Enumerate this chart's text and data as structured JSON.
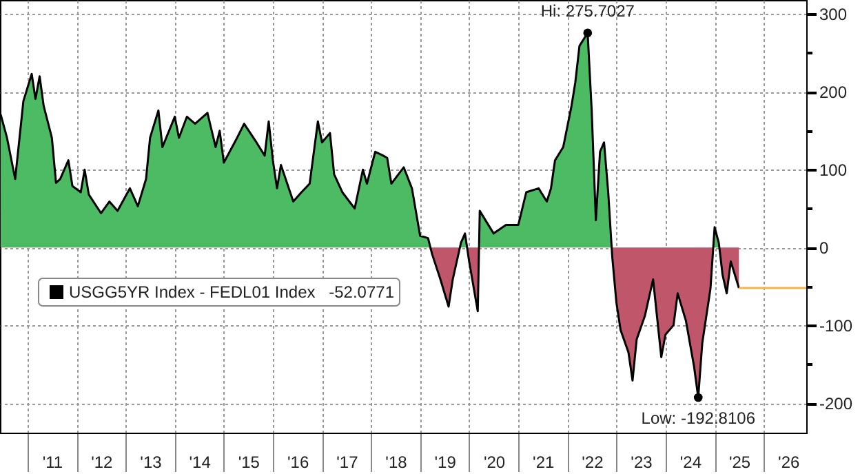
{
  "chart_data": {
    "type": "area",
    "xlim": [
      "2010-06-10",
      "2026-11-14"
    ],
    "xticks": [
      {
        "value": "2011-01-01",
        "label": null
      },
      {
        "value": "2011-07-02",
        "label": "'11"
      },
      {
        "value": "2012-01-01",
        "label": null
      },
      {
        "value": "2012-07-02",
        "label": "'12"
      },
      {
        "value": "2013-01-01",
        "label": null
      },
      {
        "value": "2013-07-02",
        "label": "'13"
      },
      {
        "value": "2014-01-01",
        "label": null
      },
      {
        "value": "2014-07-02",
        "label": "'14"
      },
      {
        "value": "2015-01-01",
        "label": null
      },
      {
        "value": "2015-07-02",
        "label": "'15"
      },
      {
        "value": "2016-01-01",
        "label": null
      },
      {
        "value": "2016-07-02",
        "label": "'16"
      },
      {
        "value": "2017-01-01",
        "label": null
      },
      {
        "value": "2017-07-02",
        "label": "'17"
      },
      {
        "value": "2018-01-01",
        "label": null
      },
      {
        "value": "2018-07-02",
        "label": "'18"
      },
      {
        "value": "2019-01-01",
        "label": null
      },
      {
        "value": "2019-07-02",
        "label": "'19"
      },
      {
        "value": "2020-01-01",
        "label": null
      },
      {
        "value": "2020-07-02",
        "label": "'20"
      },
      {
        "value": "2021-01-01",
        "label": null
      },
      {
        "value": "2021-07-02",
        "label": "'21"
      },
      {
        "value": "2022-01-01",
        "label": null
      },
      {
        "value": "2022-07-02",
        "label": "'22"
      },
      {
        "value": "2023-01-01",
        "label": null
      },
      {
        "value": "2023-07-02",
        "label": "'23"
      },
      {
        "value": "2024-01-01",
        "label": null
      },
      {
        "value": "2024-07-02",
        "label": "'24"
      },
      {
        "value": "2025-01-01",
        "label": null
      },
      {
        "value": "2025-07-02",
        "label": "'25"
      },
      {
        "value": "2026-01-01",
        "label": null
      },
      {
        "value": "2026-07-02",
        "label": "'26"
      }
    ],
    "ylim": [
      -238,
      318
    ],
    "yticks": [
      {
        "value": -200,
        "label": "-200"
      },
      {
        "value": -150,
        "label": null
      },
      {
        "value": -100,
        "label": "-100"
      },
      {
        "value": -50,
        "label": null
      },
      {
        "value": 0,
        "label": "0"
      },
      {
        "value": 50,
        "label": null
      },
      {
        "value": 100,
        "label": "100"
      },
      {
        "value": 150,
        "label": null
      },
      {
        "value": 200,
        "label": "200"
      },
      {
        "value": 250,
        "label": null
      },
      {
        "value": 300,
        "label": "300"
      }
    ],
    "grid": true,
    "legend": "left",
    "series": [
      {
        "name": "USGG5YR Index - FEDL01 Index",
        "color": "#000000",
        "colors": [
          "#4cbb63",
          "#4cbb63",
          "#4cbb63",
          "#4cbb63",
          "#4cbb63",
          "#4cbb63",
          "#4cbb63",
          "#4cbb63",
          "#4cbb63",
          "#4cbb63",
          "#4cbb63",
          "#4cbb63",
          "#4cbb63",
          "#4cbb63",
          "#4cbb63",
          "#4cbb63",
          "#4cbb63",
          "#4cbb63",
          "#4cbb63",
          "#4cbb63",
          "#4cbb63",
          "#4cbb63",
          "#4cbb63",
          "#4cbb63",
          "#4cbb63",
          "#4cbb63",
          "#4cbb63",
          "#4cbb63",
          "#4cbb63",
          "#4cbb63",
          "#4cbb63",
          "#4cbb63",
          "#4cbb63",
          "#4cbb63",
          "#4cbb63",
          "#4cbb63",
          "#4cbb63",
          "#4cbb63",
          "#4cbb63",
          "#4cbb63",
          "#4cbb63",
          "#4cbb63",
          "#4cbb63",
          "#4cbb63",
          "#4cbb63",
          "#4cbb63",
          "#4cbb63",
          "#4cbb63",
          "#4cbb63",
          "#4cbb63",
          "#4cbb63",
          "#4cbb63",
          "#4cbb63",
          "#4cbb63",
          "#4cbb63",
          "#4cbb63",
          "#4cbb63",
          "#4cbb63",
          "#4cbb63",
          "#4cbb63",
          "#c0566a",
          "#c0566a",
          "#c0566a",
          "#c0566a",
          "#4cbb63",
          "#4cbb63",
          "#c0566a",
          "#c0566a",
          "#4cbb63",
          "#4cbb63",
          "#4cbb63",
          "#4cbb63",
          "#4cbb63",
          "#4cbb63",
          "#4cbb63",
          "#4cbb63",
          "#4cbb63",
          "#4cbb63",
          "#4cbb63",
          "#4cbb63",
          "#4cbb63",
          "#4cbb63",
          "#4cbb63",
          "#4cbb63",
          "#4cbb63",
          "#4cbb63",
          "#4cbb63",
          "#c0566a",
          "#c0566a",
          "#c0566a",
          "#c0566a",
          "#c0566a",
          "#c0566a",
          "#c0566a",
          "#c0566a",
          "#c0566a",
          "#c0566a",
          "#c0566a",
          "#c0566a",
          "#c0566a",
          "#c0566a",
          "#c0566a",
          "#c0566a",
          "#c0566a",
          "#4cbb63",
          "#4cbb63",
          "#c0566a",
          "#c0566a",
          "#c0566a",
          "#c0566a"
        ],
        "x": [
          "2010-06-15",
          "2010-08",
          "2010-10",
          "2010-12",
          "2011-02",
          "2011-03",
          "2011-04",
          "2011-05",
          "2011-07",
          "2011-08",
          "2011-09",
          "2011-11",
          "2011-12",
          "2012-02",
          "2012-03",
          "2012-04",
          "2012-07",
          "2012-09",
          "2012-11",
          "2013-02",
          "2013-04",
          "2013-06",
          "2013-07",
          "2013-09",
          "2013-10",
          "2014-01",
          "2014-02",
          "2014-04",
          "2014-06",
          "2014-09",
          "2014-11",
          "2014-12",
          "2015-01",
          "2015-04",
          "2015-06",
          "2015-09",
          "2015-11",
          "2015-12",
          "2016-01",
          "2016-02",
          "2016-03",
          "2016-06",
          "2016-08",
          "2016-10",
          "2016-12",
          "2017-01",
          "2017-03",
          "2017-04",
          "2017-06",
          "2017-09",
          "2017-11",
          "2017-12",
          "2018-02",
          "2018-04",
          "2018-05",
          "2018-06",
          "2018-09",
          "2018-11",
          "2019-01",
          "2019-03",
          "2019-04",
          "2019-06",
          "2019-08",
          "2019-09",
          "2019-11",
          "2019-12",
          "2020-01",
          "2020-03-05",
          "2020-03-20",
          "2020-07",
          "2020-10",
          "2021-01",
          "2021-03",
          "2021-06",
          "2021-08",
          "2021-09",
          "2021-10",
          "2021-12",
          "2022-02",
          "2022-03",
          "2022-04",
          "2022-06",
          "2022-07",
          "2022-08",
          "2022-09",
          "2022-10",
          "2022-11",
          "2022-12",
          "2023-01",
          "2023-02",
          "2023-04",
          "2023-05",
          "2023-06",
          "2023-08",
          "2023-10",
          "2023-12",
          "2024-01",
          "2024-03",
          "2024-04",
          "2024-06",
          "2024-08",
          "2024-09",
          "2024-10",
          "2024-12",
          "2025-01",
          "2025-02",
          "2025-03",
          "2025-04",
          "2025-05",
          "2025-07"
        ],
        "values": [
          171,
          141,
          88,
          188,
          223,
          191,
          220,
          182,
          141,
          83,
          88,
          112,
          79,
          71,
          100,
          68,
          44,
          59,
          47,
          76,
          53,
          88,
          141,
          176,
          129,
          168,
          141,
          168,
          159,
          173,
          129,
          150,
          109,
          138,
          159,
          135,
          118,
          162,
          112,
          76,
          106,
          59,
          71,
          82,
          162,
          135,
          147,
          94,
          71,
          50,
          100,
          82,
          123,
          118,
          115,
          82,
          103,
          76,
          15,
          12,
          -9,
          -41,
          -76,
          -41,
          6,
          18,
          -18,
          -82,
          47,
          18,
          29,
          29,
          71,
          76,
          59,
          76,
          112,
          129,
          182,
          212,
          259,
          275.7027,
          176,
          35,
          123,
          135,
          71,
          -12,
          -71,
          -106,
          -135,
          -171,
          -118,
          -88,
          -41,
          -141,
          -112,
          -100,
          -59,
          -94,
          -153,
          -192.8106,
          -123,
          -53,
          26,
          6,
          -35,
          -59,
          -18,
          -52.0771
        ]
      },
      {
        "type": "line",
        "color": "#f5b449",
        "x": [
          "2025-07",
          "2026-11-14"
        ],
        "values": [
          -52.0771,
          -52.0771
        ]
      },
      {
        "type": "scatter",
        "color": "#000000",
        "marker": "circle",
        "x": [
          "2022-06",
          "2024-09"
        ],
        "values": [
          275.7027,
          -192.8106
        ]
      }
    ],
    "annotations": [
      {
        "text": "Hi: 275.7027",
        "x": "2022-06",
        "y": 275.7027
      },
      {
        "text": "Low: -192.8106",
        "x": "2024-09",
        "y": -192.8106
      },
      "-52.0771"
    ]
  }
}
